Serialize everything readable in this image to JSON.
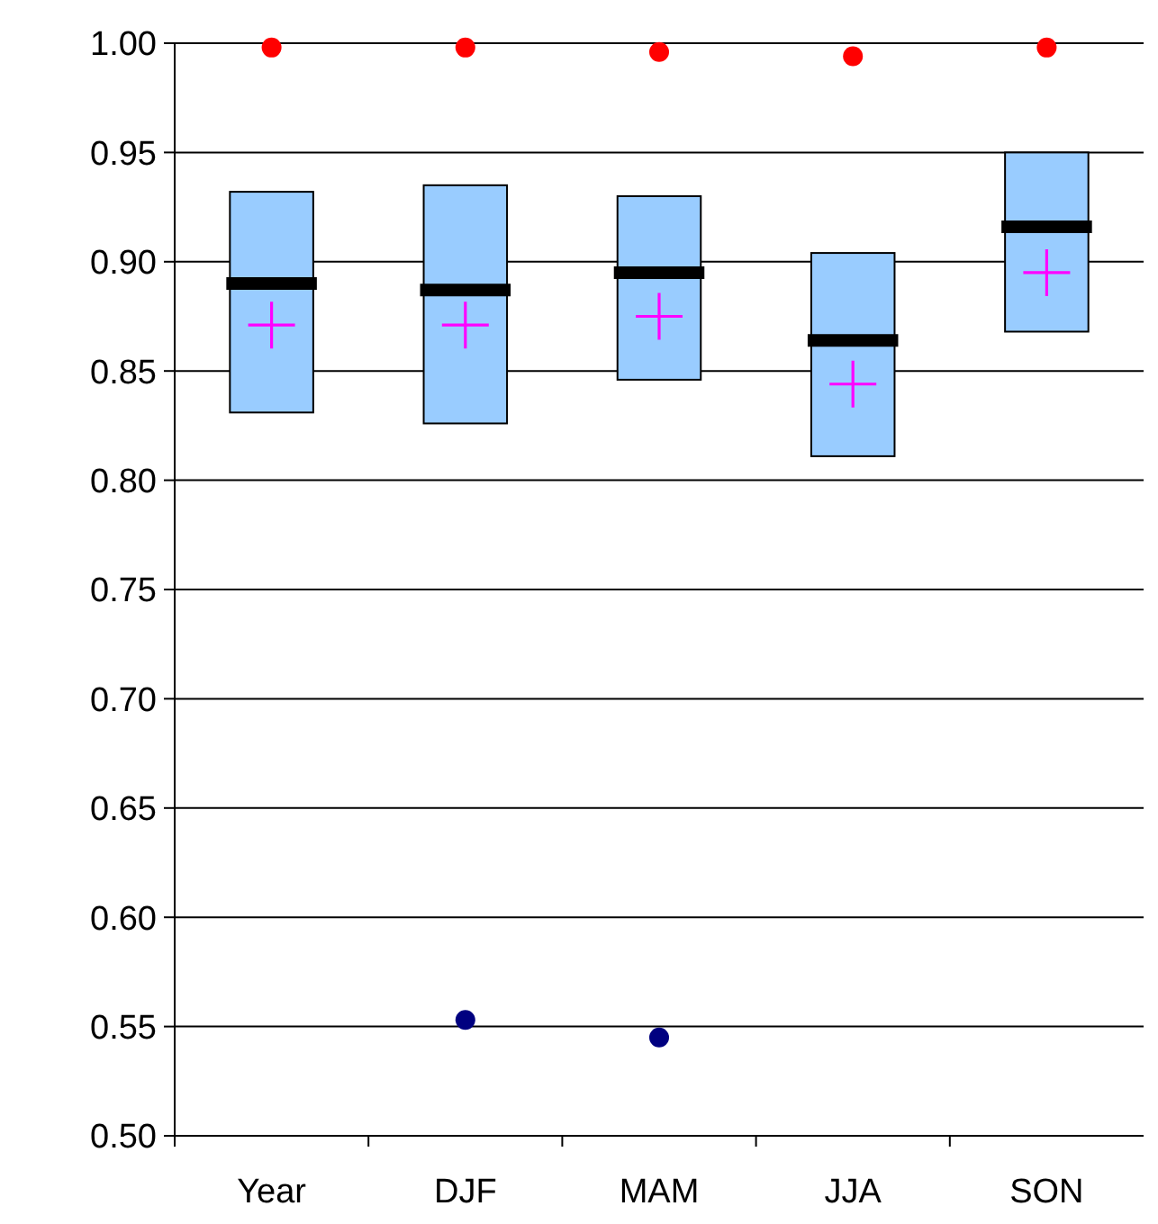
{
  "chart_data": {
    "type": "box",
    "categories": [
      "Year",
      "DJF",
      "MAM",
      "JJA",
      "SON"
    ],
    "ylim": [
      0.5,
      1.0
    ],
    "yticks": [
      {
        "value": 0.5,
        "label": "0.50"
      },
      {
        "value": 0.55,
        "label": "0.55"
      },
      {
        "value": 0.6,
        "label": "0.60"
      },
      {
        "value": 0.65,
        "label": "0.65"
      },
      {
        "value": 0.7,
        "label": "0.70"
      },
      {
        "value": 0.75,
        "label": "0.75"
      },
      {
        "value": 0.8,
        "label": "0.80"
      },
      {
        "value": 0.85,
        "label": "0.85"
      },
      {
        "value": 0.9,
        "label": "0.90"
      },
      {
        "value": 0.95,
        "label": "0.95"
      },
      {
        "value": 1.0,
        "label": "1.00"
      }
    ],
    "grid": "y",
    "series": [
      {
        "color": "#99ccff",
        "boxes": [
          {
            "low": 0.831,
            "q1": 0.831,
            "median": 0.89,
            "q3": 0.932,
            "high": 0.932
          },
          {
            "low": 0.826,
            "q1": 0.826,
            "median": 0.887,
            "q3": 0.935,
            "high": 0.935
          },
          {
            "low": 0.846,
            "q1": 0.846,
            "median": 0.895,
            "q3": 0.93,
            "high": 0.93
          },
          {
            "low": 0.811,
            "q1": 0.811,
            "median": 0.864,
            "q3": 0.904,
            "high": 0.904
          },
          {
            "low": 0.868,
            "q1": 0.868,
            "median": 0.916,
            "q3": 0.95,
            "high": 0.95
          }
        ]
      },
      {
        "type": "scatter",
        "color": "#ff00ff",
        "marker": "cross",
        "x": [
          "Year",
          "DJF",
          "MAM",
          "JJA",
          "SON"
        ],
        "values": [
          0.871,
          0.871,
          0.875,
          0.844,
          0.895
        ]
      },
      {
        "type": "scatter",
        "color": "#ff0000",
        "marker": "circle",
        "x": [
          "Year",
          "DJF",
          "MAM",
          "JJA",
          "SON"
        ],
        "values": [
          0.998,
          0.998,
          0.996,
          0.994,
          0.998
        ]
      },
      {
        "type": "scatter",
        "color": "#000080",
        "marker": "circle",
        "x": [
          "Year",
          "DJF",
          "MAM",
          "JJA",
          "SON"
        ],
        "values": [
          null,
          0.553,
          0.545,
          null,
          null
        ]
      }
    ]
  }
}
